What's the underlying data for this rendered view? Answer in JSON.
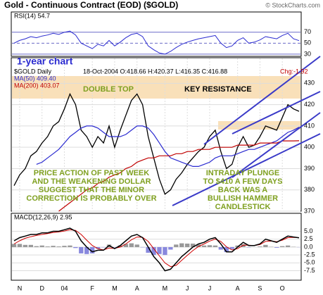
{
  "chart_data": {
    "type": "line",
    "title": "Gold - Continuous Contract (EOD) ($GOLD)",
    "credit": "© StockCharts.com",
    "tag": "1-year chart",
    "legend_name": "$GOLD Daily",
    "legend_quote": "18-Oct-2004  O:418.66 H:420.37 L:416.35 C:416.88",
    "legend_change": "Chg:-1.92",
    "categories": [
      null,
      "N",
      null,
      null,
      null,
      "D",
      null,
      null,
      null,
      "04",
      null,
      null,
      null,
      null,
      "F",
      null,
      null,
      null,
      "M",
      null,
      null,
      null,
      "A",
      null,
      null,
      null,
      null,
      "M",
      null,
      null,
      null,
      "J",
      null,
      null,
      null,
      "J",
      null,
      null,
      null,
      null,
      "A",
      null,
      null,
      null,
      "S",
      null,
      null,
      null,
      "O",
      null,
      null,
      null
    ],
    "ylim": [
      370,
      442
    ],
    "yticks": [
      370,
      380,
      390,
      400,
      410,
      420,
      430
    ],
    "grid": true,
    "series": [
      {
        "name": "$GOLD Daily",
        "color": "#000000",
        "values": [
          382,
          387,
          390,
          396,
          398,
          402,
          405,
          410,
          412,
          418,
          425,
          420,
          408,
          405,
          400,
          405,
          402,
          410,
          400,
          408,
          415,
          422,
          425,
          420,
          405,
          395,
          385,
          378,
          380,
          385,
          388,
          392,
          395,
          398,
          400,
          405,
          408,
          398,
          390,
          392,
          400,
          405,
          400,
          401,
          405,
          410,
          409,
          408,
          414,
          420,
          418,
          416.88
        ]
      },
      {
        "name": "MA(50) 409.40",
        "color": "#2a2ad0",
        "values": [
          null,
          null,
          null,
          null,
          392,
          393,
          395,
          397,
          399,
          402,
          405,
          407,
          409,
          410,
          410,
          409,
          407,
          405,
          405,
          405,
          406,
          408,
          410,
          410,
          409,
          406,
          402,
          398,
          395,
          394,
          393,
          392,
          391,
          391,
          392,
          393,
          395,
          396,
          396,
          396,
          397,
          398,
          399,
          399,
          400,
          401,
          402,
          403,
          405,
          407,
          408,
          409.4
        ]
      },
      {
        "name": "MA(200) 403.07",
        "color": "#c00000",
        "values": [
          null,
          null,
          null,
          null,
          null,
          null,
          null,
          null,
          370,
          372,
          374,
          376,
          378,
          380,
          381,
          383,
          384,
          386,
          387,
          388,
          390,
          391,
          393,
          394,
          395,
          395,
          396,
          396,
          396,
          397,
          397,
          398,
          398,
          399,
          399,
          399,
          400,
          400,
          400,
          400,
          401,
          401,
          401,
          401,
          402,
          402,
          402,
          402,
          403,
          403,
          403,
          403.07
        ]
      }
    ],
    "annotations": {
      "double_top": "DOUBLE TOP",
      "key_resistance": "KEY RESISTANCE",
      "price_action": [
        "PRICE ACTION OF PAST WEEK",
        "AND THE WEAKENING DOLLAR",
        "SUGGEST THAT THE MINOR",
        "CORRECTION IS PROBABLY OVER"
      ],
      "plunge": [
        "INTRADAY PLUNGE",
        "TO $410 A FEW DAYS",
        "BACK WAS A",
        "BULLISH HAMMER",
        "CANDLESTICK"
      ]
    },
    "rsi": {
      "label": "RSI(14) 54.7",
      "color": "#2a2ad0",
      "ylim": [
        26,
        107
      ],
      "yticks": [
        30,
        50,
        70
      ],
      "values": [
        50,
        55,
        58,
        62,
        60,
        63,
        65,
        68,
        66,
        70,
        72,
        65,
        50,
        45,
        40,
        48,
        45,
        55,
        45,
        52,
        60,
        66,
        68,
        62,
        45,
        38,
        32,
        30,
        35,
        42,
        48,
        52,
        55,
        58,
        60,
        62,
        64,
        50,
        42,
        45,
        55,
        60,
        50,
        52,
        56,
        62,
        60,
        58,
        64,
        68,
        58,
        54.7
      ]
    },
    "macd": {
      "label": "MACD(12,26,9) 2.95",
      "ylim": [
        -10.5,
        10.7
      ],
      "yticks": [
        {
          "value": -7.5,
          "label": "-7.5"
        },
        {
          "value": -5,
          "label": "-5.0"
        },
        {
          "value": -2.5,
          "label": "-2.5"
        },
        {
          "value": 0,
          "label": "0.0"
        },
        {
          "value": 2.5,
          "label": "2.5"
        },
        {
          "value": 5,
          "label": "5.0"
        }
      ],
      "macd": [
        2,
        3,
        3.5,
        4,
        4,
        4.5,
        4.5,
        5,
        5,
        5.5,
        6,
        5,
        2,
        0,
        -1.5,
        -1,
        -1,
        0.5,
        -0.5,
        0.5,
        2,
        3.5,
        4,
        3,
        0,
        -3,
        -5,
        -7.5,
        -7,
        -5,
        -3,
        -1.5,
        0,
        1,
        1.5,
        2.5,
        3,
        1,
        -1.5,
        -1.5,
        0,
        1.5,
        0.5,
        0.5,
        1,
        2.5,
        2,
        1.5,
        2.5,
        3.5,
        3.2,
        2.95
      ],
      "signal": [
        1,
        2,
        2.8,
        3.3,
        3.7,
        4,
        4.3,
        4.6,
        4.8,
        5.1,
        5.5,
        5.3,
        4,
        2.2,
        0.5,
        -0.5,
        -0.9,
        -0.3,
        -0.4,
        0,
        1,
        2.3,
        3.2,
        3.1,
        1.8,
        -0.5,
        -2.8,
        -5,
        -6.2,
        -5.8,
        -4.2,
        -2.6,
        -1.1,
        0.2,
        1,
        1.9,
        2.5,
        1.8,
        0.1,
        -0.9,
        -0.5,
        0.6,
        0.6,
        0.5,
        0.8,
        1.8,
        1.9,
        1.7,
        2.2,
        3,
        3.1,
        3
      ],
      "histogram": [
        1,
        1,
        0.7,
        0.7,
        0.3,
        0.5,
        0.2,
        0.4,
        0.2,
        0.4,
        0.5,
        -0.3,
        -2,
        -2.2,
        -2,
        -0.5,
        -0.1,
        0.8,
        -0.1,
        0.5,
        1,
        1.2,
        0.8,
        -0.1,
        -1.8,
        -2.5,
        -2.2,
        -2.5,
        -0.8,
        0.8,
        1.2,
        1.1,
        1.1,
        0.8,
        0.5,
        0.6,
        0.5,
        -0.8,
        -1.6,
        -0.6,
        0.5,
        0.9,
        -0.1,
        0,
        0.2,
        0.7,
        0.1,
        -0.2,
        0.3,
        0.5,
        0.1,
        -0.05
      ]
    }
  }
}
